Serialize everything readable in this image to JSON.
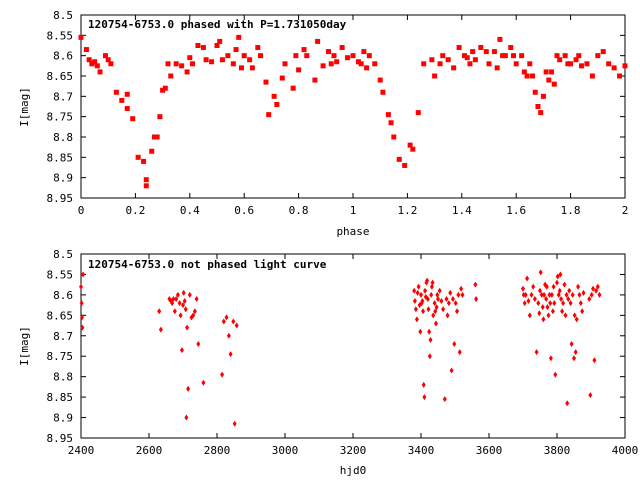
{
  "chart_data": [
    {
      "type": "scatter",
      "title": "120754-6753.0 phased with P=1.731050day",
      "xlabel": "phase",
      "ylabel": "I[mag]",
      "xlim": [
        0,
        2
      ],
      "ylim": [
        8.95,
        8.5
      ],
      "y_inverted": true,
      "grid": false,
      "marker": "square",
      "color": "#ff0000",
      "xticks": [
        "0",
        "0.2",
        "0.4",
        "0.6",
        "0.8",
        "1",
        "1.2",
        "1.4",
        "1.6",
        "1.8",
        "2"
      ],
      "yticks": [
        "8.5",
        "8.55",
        "8.6",
        "8.65",
        "8.7",
        "8.75",
        "8.8",
        "8.85",
        "8.9",
        "8.95"
      ],
      "points": [
        [
          0.0,
          8.555
        ],
        [
          0.02,
          8.585
        ],
        [
          0.03,
          8.61
        ],
        [
          0.04,
          8.62
        ],
        [
          0.05,
          8.615
        ],
        [
          0.06,
          8.625
        ],
        [
          0.07,
          8.64
        ],
        [
          0.09,
          8.6
        ],
        [
          0.1,
          8.61
        ],
        [
          0.11,
          8.62
        ],
        [
          0.13,
          8.69
        ],
        [
          0.15,
          8.71
        ],
        [
          0.17,
          8.73
        ],
        [
          0.17,
          8.695
        ],
        [
          0.19,
          8.755
        ],
        [
          0.21,
          8.85
        ],
        [
          0.23,
          8.86
        ],
        [
          0.24,
          8.905
        ],
        [
          0.24,
          8.92
        ],
        [
          0.26,
          8.835
        ],
        [
          0.27,
          8.8
        ],
        [
          0.28,
          8.8
        ],
        [
          0.29,
          8.75
        ],
        [
          0.3,
          8.685
        ],
        [
          0.31,
          8.68
        ],
        [
          0.32,
          8.62
        ],
        [
          0.33,
          8.65
        ],
        [
          0.35,
          8.62
        ],
        [
          0.37,
          8.625
        ],
        [
          0.39,
          8.64
        ],
        [
          0.4,
          8.605
        ],
        [
          0.41,
          8.62
        ],
        [
          0.43,
          8.575
        ],
        [
          0.45,
          8.58
        ],
        [
          0.46,
          8.61
        ],
        [
          0.48,
          8.615
        ],
        [
          0.5,
          8.575
        ],
        [
          0.51,
          8.565
        ],
        [
          0.52,
          8.61
        ],
        [
          0.54,
          8.6
        ],
        [
          0.56,
          8.62
        ],
        [
          0.57,
          8.585
        ],
        [
          0.58,
          8.555
        ],
        [
          0.59,
          8.63
        ],
        [
          0.6,
          8.6
        ],
        [
          0.62,
          8.61
        ],
        [
          0.63,
          8.63
        ],
        [
          0.65,
          8.58
        ],
        [
          0.66,
          8.6
        ],
        [
          0.68,
          8.665
        ],
        [
          0.69,
          8.745
        ],
        [
          0.71,
          8.7
        ],
        [
          0.72,
          8.72
        ],
        [
          0.74,
          8.655
        ],
        [
          0.75,
          8.62
        ],
        [
          0.78,
          8.68
        ],
        [
          0.79,
          8.6
        ],
        [
          0.8,
          8.635
        ],
        [
          0.82,
          8.585
        ],
        [
          0.83,
          8.6
        ],
        [
          0.86,
          8.66
        ],
        [
          0.87,
          8.565
        ],
        [
          0.89,
          8.625
        ],
        [
          0.91,
          8.59
        ],
        [
          0.92,
          8.62
        ],
        [
          0.93,
          8.6
        ],
        [
          0.94,
          8.615
        ],
        [
          0.96,
          8.58
        ],
        [
          0.98,
          8.605
        ],
        [
          1.0,
          8.6
        ],
        [
          1.02,
          8.615
        ],
        [
          1.03,
          8.62
        ],
        [
          1.04,
          8.59
        ],
        [
          1.05,
          8.63
        ],
        [
          1.06,
          8.6
        ],
        [
          1.08,
          8.62
        ],
        [
          1.1,
          8.66
        ],
        [
          1.11,
          8.69
        ],
        [
          1.13,
          8.745
        ],
        [
          1.14,
          8.765
        ],
        [
          1.15,
          8.8
        ],
        [
          1.17,
          8.855
        ],
        [
          1.19,
          8.87
        ],
        [
          1.21,
          8.82
        ],
        [
          1.22,
          8.83
        ],
        [
          1.24,
          8.74
        ],
        [
          1.26,
          8.62
        ],
        [
          1.29,
          8.61
        ],
        [
          1.3,
          8.65
        ],
        [
          1.32,
          8.62
        ],
        [
          1.33,
          8.6
        ],
        [
          1.35,
          8.61
        ],
        [
          1.37,
          8.63
        ],
        [
          1.39,
          8.58
        ],
        [
          1.41,
          8.6
        ],
        [
          1.42,
          8.605
        ],
        [
          1.43,
          8.62
        ],
        [
          1.44,
          8.59
        ],
        [
          1.45,
          8.61
        ],
        [
          1.47,
          8.58
        ],
        [
          1.49,
          8.59
        ],
        [
          1.5,
          8.62
        ],
        [
          1.52,
          8.59
        ],
        [
          1.53,
          8.63
        ],
        [
          1.54,
          8.56
        ],
        [
          1.55,
          8.6
        ],
        [
          1.56,
          8.6
        ],
        [
          1.58,
          8.58
        ],
        [
          1.59,
          8.6
        ],
        [
          1.6,
          8.62
        ],
        [
          1.62,
          8.6
        ],
        [
          1.63,
          8.64
        ],
        [
          1.64,
          8.65
        ],
        [
          1.65,
          8.62
        ],
        [
          1.66,
          8.65
        ],
        [
          1.67,
          8.69
        ],
        [
          1.68,
          8.725
        ],
        [
          1.69,
          8.74
        ],
        [
          1.7,
          8.7
        ],
        [
          1.71,
          8.64
        ],
        [
          1.72,
          8.66
        ],
        [
          1.73,
          8.64
        ],
        [
          1.74,
          8.67
        ],
        [
          1.75,
          8.6
        ],
        [
          1.76,
          8.61
        ],
        [
          1.78,
          8.6
        ],
        [
          1.79,
          8.62
        ],
        [
          1.8,
          8.62
        ],
        [
          1.82,
          8.61
        ],
        [
          1.83,
          8.6
        ],
        [
          1.84,
          8.625
        ],
        [
          1.86,
          8.62
        ],
        [
          1.88,
          8.65
        ],
        [
          1.9,
          8.6
        ],
        [
          1.92,
          8.59
        ],
        [
          1.94,
          8.62
        ],
        [
          1.96,
          8.63
        ],
        [
          1.98,
          8.65
        ],
        [
          2.0,
          8.625
        ]
      ]
    },
    {
      "type": "scatter",
      "title": "120754-6753.0 not phased light curve",
      "xlabel": "hjd0",
      "ylabel": "I[mag]",
      "xlim": [
        2400,
        4000
      ],
      "ylim": [
        8.95,
        8.5
      ],
      "y_inverted": true,
      "grid": false,
      "marker": "diamond",
      "color": "#ff0000",
      "xticks": [
        "2400",
        "2600",
        "2800",
        "3000",
        "3200",
        "3400",
        "3600",
        "3800",
        "4000"
      ],
      "yticks": [
        "8.5",
        "8.55",
        "8.6",
        "8.65",
        "8.7",
        "8.75",
        "8.8",
        "8.85",
        "8.9",
        "8.95"
      ],
      "points": [
        [
          2400,
          8.58
        ],
        [
          2402,
          8.62
        ],
        [
          2403,
          8.655
        ],
        [
          2404,
          8.68
        ],
        [
          2406,
          8.55
        ],
        [
          2630,
          8.64
        ],
        [
          2635,
          8.685
        ],
        [
          2660,
          8.61
        ],
        [
          2665,
          8.615
        ],
        [
          2668,
          8.62
        ],
        [
          2672,
          8.61
        ],
        [
          2676,
          8.64
        ],
        [
          2680,
          8.61
        ],
        [
          2685,
          8.6
        ],
        [
          2690,
          8.62
        ],
        [
          2693,
          8.65
        ],
        [
          2697,
          8.735
        ],
        [
          2700,
          8.625
        ],
        [
          2702,
          8.595
        ],
        [
          2705,
          8.615
        ],
        [
          2708,
          8.635
        ],
        [
          2710,
          8.9
        ],
        [
          2712,
          8.68
        ],
        [
          2715,
          8.83
        ],
        [
          2720,
          8.6
        ],
        [
          2725,
          8.655
        ],
        [
          2730,
          8.65
        ],
        [
          2735,
          8.64
        ],
        [
          2740,
          8.61
        ],
        [
          2745,
          8.72
        ],
        [
          2760,
          8.815
        ],
        [
          2815,
          8.795
        ],
        [
          2820,
          8.665
        ],
        [
          2828,
          8.655
        ],
        [
          2835,
          8.7
        ],
        [
          2840,
          8.745
        ],
        [
          2848,
          8.665
        ],
        [
          2852,
          8.915
        ],
        [
          2858,
          8.675
        ],
        [
          3380,
          8.59
        ],
        [
          3382,
          8.615
        ],
        [
          3385,
          8.635
        ],
        [
          3388,
          8.66
        ],
        [
          3390,
          8.595
        ],
        [
          3393,
          8.58
        ],
        [
          3396,
          8.625
        ],
        [
          3398,
          8.69
        ],
        [
          3400,
          8.6
        ],
        [
          3402,
          8.62
        ],
        [
          3404,
          8.615
        ],
        [
          3406,
          8.64
        ],
        [
          3408,
          8.82
        ],
        [
          3410,
          8.85
        ],
        [
          3412,
          8.59
        ],
        [
          3414,
          8.605
        ],
        [
          3416,
          8.57
        ],
        [
          3418,
          8.565
        ],
        [
          3420,
          8.61
        ],
        [
          3422,
          8.635
        ],
        [
          3424,
          8.69
        ],
        [
          3426,
          8.75
        ],
        [
          3428,
          8.71
        ],
        [
          3430,
          8.6
        ],
        [
          3432,
          8.58
        ],
        [
          3434,
          8.57
        ],
        [
          3436,
          8.65
        ],
        [
          3440,
          8.62
        ],
        [
          3442,
          8.64
        ],
        [
          3444,
          8.67
        ],
        [
          3446,
          8.63
        ],
        [
          3448,
          8.6
        ],
        [
          3450,
          8.61
        ],
        [
          3455,
          8.59
        ],
        [
          3460,
          8.615
        ],
        [
          3465,
          8.635
        ],
        [
          3470,
          8.855
        ],
        [
          3475,
          8.61
        ],
        [
          3478,
          8.65
        ],
        [
          3482,
          8.62
        ],
        [
          3486,
          8.595
        ],
        [
          3490,
          8.785
        ],
        [
          3494,
          8.61
        ],
        [
          3498,
          8.72
        ],
        [
          3502,
          8.62
        ],
        [
          3506,
          8.64
        ],
        [
          3510,
          8.6
        ],
        [
          3514,
          8.74
        ],
        [
          3518,
          8.585
        ],
        [
          3522,
          8.6
        ],
        [
          3560,
          8.575
        ],
        [
          3562,
          8.61
        ],
        [
          3700,
          8.585
        ],
        [
          3702,
          8.6
        ],
        [
          3705,
          8.62
        ],
        [
          3708,
          8.6
        ],
        [
          3712,
          8.56
        ],
        [
          3716,
          8.615
        ],
        [
          3720,
          8.65
        ],
        [
          3725,
          8.6
        ],
        [
          3730,
          8.58
        ],
        [
          3735,
          8.61
        ],
        [
          3740,
          8.74
        ],
        [
          3745,
          8.62
        ],
        [
          3748,
          8.645
        ],
        [
          3750,
          8.59
        ],
        [
          3752,
          8.545
        ],
        [
          3755,
          8.6
        ],
        [
          3758,
          8.63
        ],
        [
          3760,
          8.66
        ],
        [
          3762,
          8.6
        ],
        [
          3765,
          8.575
        ],
        [
          3768,
          8.61
        ],
        [
          3770,
          8.58
        ],
        [
          3772,
          8.63
        ],
        [
          3775,
          8.65
        ],
        [
          3778,
          8.6
        ],
        [
          3780,
          8.62
        ],
        [
          3782,
          8.755
        ],
        [
          3785,
          8.6
        ],
        [
          3788,
          8.64
        ],
        [
          3790,
          8.58
        ],
        [
          3792,
          8.62
        ],
        [
          3795,
          8.795
        ],
        [
          3800,
          8.57
        ],
        [
          3802,
          8.555
        ],
        [
          3805,
          8.6
        ],
        [
          3808,
          8.59
        ],
        [
          3810,
          8.55
        ],
        [
          3812,
          8.61
        ],
        [
          3815,
          8.64
        ],
        [
          3818,
          8.62
        ],
        [
          3822,
          8.575
        ],
        [
          3825,
          8.65
        ],
        [
          3828,
          8.6
        ],
        [
          3830,
          8.865
        ],
        [
          3833,
          8.61
        ],
        [
          3836,
          8.59
        ],
        [
          3840,
          8.62
        ],
        [
          3843,
          8.72
        ],
        [
          3846,
          8.6
        ],
        [
          3850,
          8.755
        ],
        [
          3852,
          8.65
        ],
        [
          3855,
          8.74
        ],
        [
          3858,
          8.66
        ],
        [
          3862,
          8.58
        ],
        [
          3866,
          8.6
        ],
        [
          3870,
          8.62
        ],
        [
          3874,
          8.64
        ],
        [
          3878,
          8.595
        ],
        [
          3895,
          8.61
        ],
        [
          3898,
          8.845
        ],
        [
          3902,
          8.6
        ],
        [
          3906,
          8.585
        ],
        [
          3910,
          8.76
        ],
        [
          3915,
          8.59
        ],
        [
          3920,
          8.58
        ],
        [
          3925,
          8.6
        ]
      ]
    }
  ]
}
